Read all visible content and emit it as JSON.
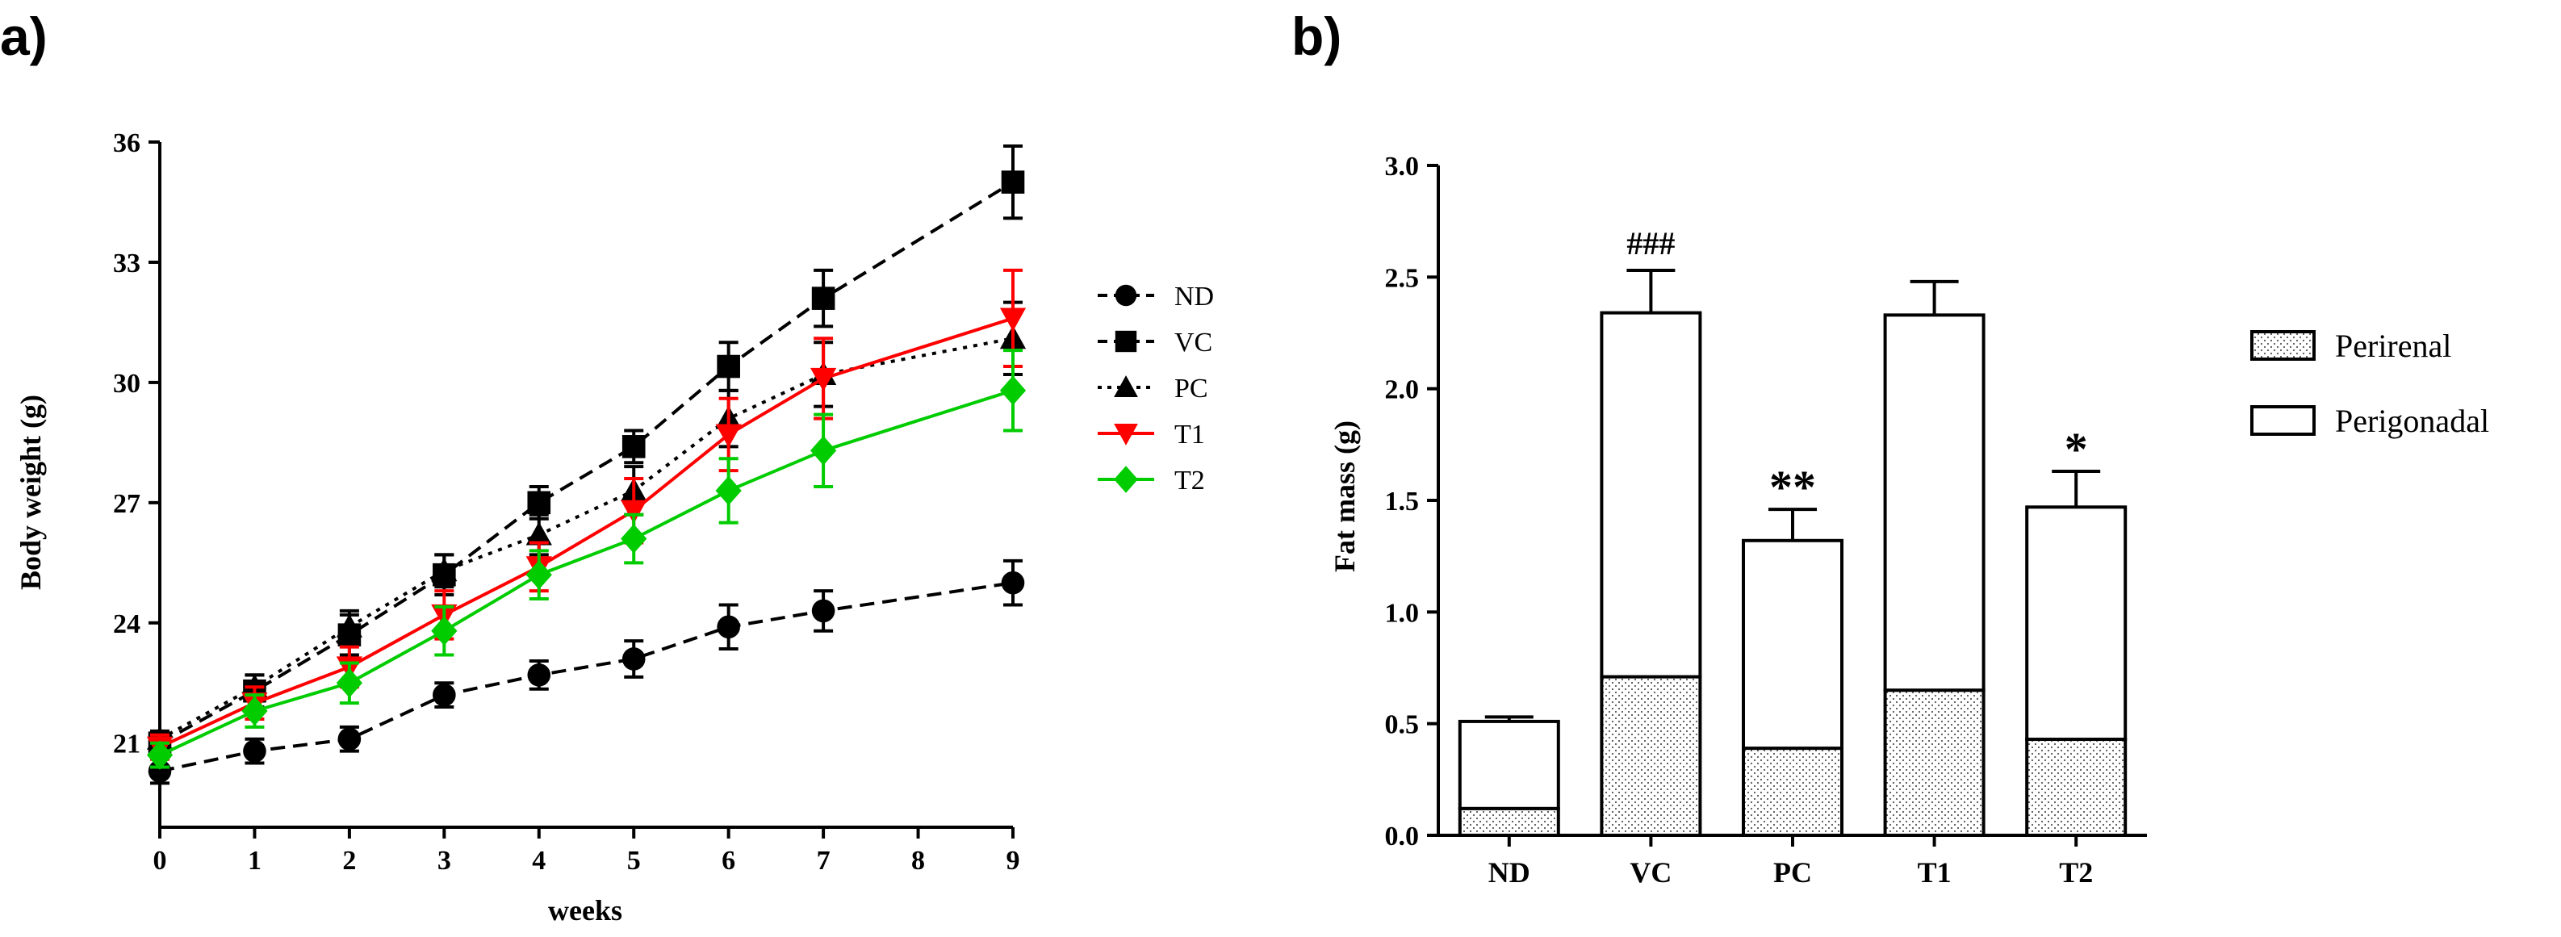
{
  "chart_data": [
    {
      "panel_label": "a)",
      "type": "line",
      "xlabel": "weeks",
      "ylabel": "Body weight (g)",
      "xlim": [
        0,
        9
      ],
      "ylim": [
        18.9,
        36
      ],
      "x_ticks": [
        "0",
        "1",
        "2",
        "3",
        "4",
        "5",
        "6",
        "7",
        "8",
        "9"
      ],
      "y_ticks": [
        "21",
        "24",
        "27",
        "30",
        "33",
        "36"
      ],
      "x": [
        0,
        1,
        2,
        3,
        4,
        5,
        6,
        7,
        9
      ],
      "series": [
        {
          "name": "ND",
          "color": "#000000",
          "marker": "circle",
          "dash": "long",
          "values": [
            20.3,
            20.8,
            21.1,
            22.2,
            22.7,
            23.1,
            23.9,
            24.3,
            25.0
          ],
          "errors": [
            0.3,
            0.3,
            0.3,
            0.3,
            0.35,
            0.45,
            0.55,
            0.5,
            0.55
          ]
        },
        {
          "name": "VC",
          "color": "#000000",
          "marker": "square",
          "dash": "long",
          "values": [
            21.0,
            22.3,
            23.7,
            25.2,
            27.0,
            28.4,
            30.4,
            32.1,
            35.0
          ],
          "errors": [
            0.2,
            0.4,
            0.5,
            0.5,
            0.4,
            0.4,
            0.6,
            0.7,
            0.9
          ]
        },
        {
          "name": "PC",
          "color": "#000000",
          "marker": "triangle-up",
          "dash": "dotted",
          "values": [
            21.1,
            22.4,
            23.9,
            25.3,
            26.2,
            27.3,
            29.1,
            30.2,
            31.1
          ],
          "errors": [
            0.2,
            0.3,
            0.4,
            0.4,
            0.5,
            0.6,
            0.7,
            0.8,
            0.9
          ]
        },
        {
          "name": "T1",
          "color": "#ff0000",
          "marker": "triangle-down",
          "dash": "solid",
          "values": [
            20.9,
            22.0,
            22.9,
            24.2,
            25.4,
            26.8,
            28.7,
            30.1,
            31.6
          ],
          "errors": [
            0.3,
            0.4,
            0.5,
            0.6,
            0.6,
            0.8,
            0.9,
            1.0,
            1.2
          ]
        },
        {
          "name": "T2",
          "color": "#00cc00",
          "marker": "diamond",
          "dash": "solid",
          "values": [
            20.7,
            21.8,
            22.5,
            23.8,
            25.2,
            26.1,
            27.3,
            28.3,
            29.8
          ],
          "errors": [
            0.3,
            0.4,
            0.5,
            0.6,
            0.6,
            0.6,
            0.8,
            0.9,
            1.0
          ]
        }
      ],
      "legend_position": "right"
    },
    {
      "panel_label": "b)",
      "type": "bar",
      "stacked": true,
      "ylabel": "Fat mass (g)",
      "ylim": [
        0,
        3.0
      ],
      "y_ticks": [
        "0.0",
        "0.5",
        "1.0",
        "1.5",
        "2.0",
        "2.5",
        "3.0"
      ],
      "categories": [
        "ND",
        "VC",
        "PC",
        "T1",
        "T2"
      ],
      "series": [
        {
          "name": "Perirenal",
          "fill": "dotted",
          "values": [
            0.12,
            0.71,
            0.39,
            0.65,
            0.43
          ]
        },
        {
          "name": "Perigonadal",
          "fill": "white",
          "values": [
            0.39,
            1.63,
            0.93,
            1.68,
            1.04
          ]
        }
      ],
      "totals": [
        0.51,
        2.34,
        1.32,
        2.33,
        1.47
      ],
      "errors": [
        0.02,
        0.19,
        0.14,
        0.15,
        0.16
      ],
      "annotations": [
        "",
        "###",
        "**",
        "",
        "*"
      ],
      "legend_position": "right"
    }
  ]
}
